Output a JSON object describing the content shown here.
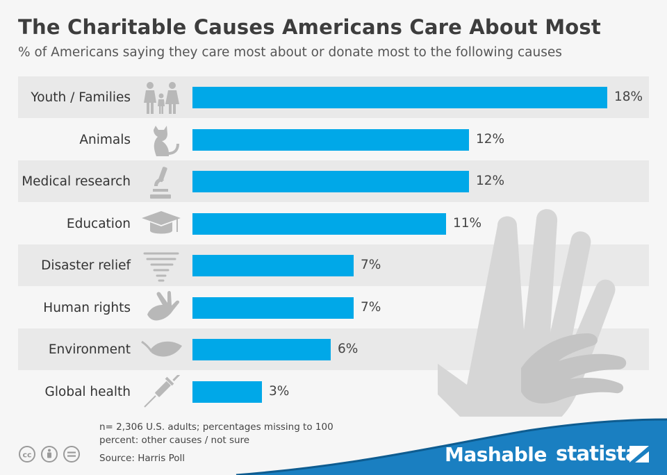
{
  "header": {
    "title": "The Charitable Causes Americans Care About Most",
    "subtitle": "% of Americans saying they care most about or donate most to the following causes"
  },
  "chart_data": {
    "type": "bar",
    "orientation": "horizontal",
    "title": "The Charitable Causes Americans Care About Most",
    "subtitle": "% of Americans saying they care most about or donate most to the following causes",
    "categories": [
      "Youth / Families",
      "Animals",
      "Medical research",
      "Education",
      "Disaster relief",
      "Human rights",
      "Environment",
      "Global health"
    ],
    "values": [
      18,
      12,
      12,
      11,
      7,
      7,
      6,
      3
    ],
    "value_labels": [
      "18%",
      "12%",
      "12%",
      "11%",
      "7%",
      "7%",
      "6%",
      "3%"
    ],
    "icons": [
      "family-icon",
      "cat-icon",
      "microscope-icon",
      "graduation-cap-icon",
      "tornado-icon",
      "hand-icon",
      "leaf-icon",
      "syringe-icon"
    ],
    "unit": "%",
    "xlim": [
      0,
      18
    ],
    "xlabel": "",
    "ylabel": "",
    "grid": false,
    "bar_color": "#00a8e8"
  },
  "footer": {
    "note": "n= 2,306 U.S. adults; percentages missing to 100 percent: other causes / not sure",
    "source": "Source: Harris Poll",
    "brand_left": "Mashable",
    "brand_right": "statista",
    "accent_color": "#1a7fc1"
  }
}
